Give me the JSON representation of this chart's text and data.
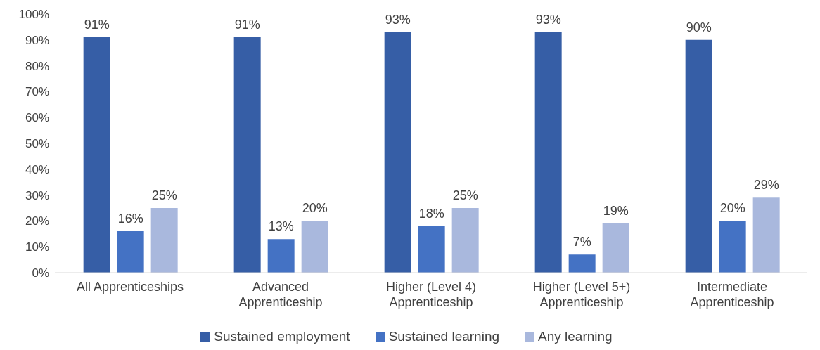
{
  "chart_data": {
    "type": "bar",
    "categories": [
      "All Apprenticeships",
      "Advanced Apprenticeship",
      "Higher (Level 4) Apprenticeship",
      "Higher (Level 5+) Apprenticeship",
      "Intermediate Apprenticeship"
    ],
    "series": [
      {
        "name": "Sustained employment",
        "color": "#365ea6",
        "values": [
          91,
          91,
          93,
          93,
          90
        ],
        "value_labels": [
          "91%",
          "91%",
          "93%",
          "93%",
          "90%"
        ]
      },
      {
        "name": "Sustained learning",
        "color": "#4472c4",
        "values": [
          16,
          13,
          18,
          7,
          20
        ],
        "value_labels": [
          "16%",
          "13%",
          "18%",
          "7%",
          "20%"
        ]
      },
      {
        "name": "Any learning",
        "color": "#a9b8dd",
        "values": [
          25,
          20,
          25,
          19,
          29
        ],
        "value_labels": [
          "25%",
          "20%",
          "25%",
          "19%",
          "29%"
        ]
      }
    ],
    "ylim": [
      0,
      100
    ],
    "yticks": [
      {
        "value": 0,
        "label": "0%"
      },
      {
        "value": 10,
        "label": "10%"
      },
      {
        "value": 20,
        "label": "20%"
      },
      {
        "value": 30,
        "label": "30%"
      },
      {
        "value": 40,
        "label": "40%"
      },
      {
        "value": 50,
        "label": "50%"
      },
      {
        "value": 60,
        "label": "60%"
      },
      {
        "value": 70,
        "label": "70%"
      },
      {
        "value": 80,
        "label": "80%"
      },
      {
        "value": 90,
        "label": "90%"
      },
      {
        "value": 100,
        "label": "100%"
      }
    ],
    "grid": false,
    "legend": "bottom"
  }
}
